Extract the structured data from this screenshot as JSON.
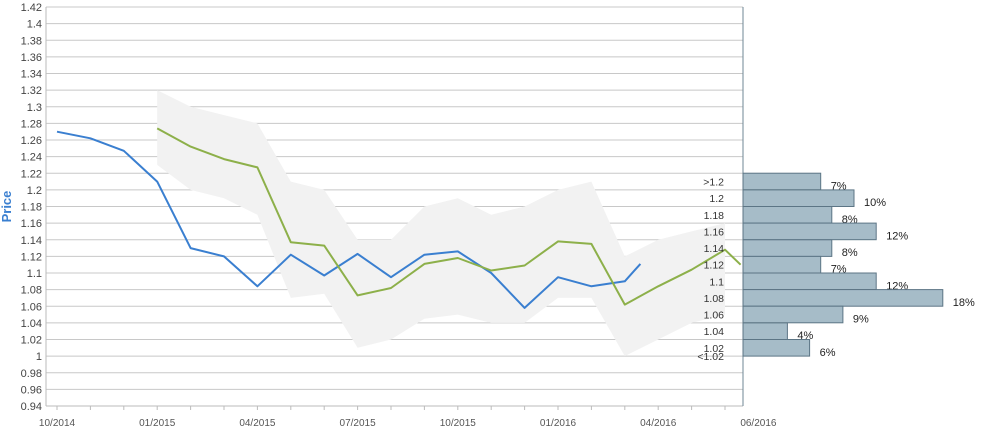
{
  "chart_data": {
    "type": "line",
    "ylabel": "Price",
    "ylim": [
      0.94,
      1.42
    ],
    "yticks": [
      0.94,
      0.96,
      0.98,
      1,
      1.02,
      1.04,
      1.06,
      1.08,
      1.1,
      1.12,
      1.14,
      1.16,
      1.18,
      1.2,
      1.22,
      1.24,
      1.26,
      1.28,
      1.3,
      1.32,
      1.34,
      1.36,
      1.38,
      1.4,
      1.42
    ],
    "xticks": [
      "10/2014",
      "01/2015",
      "04/2015",
      "07/2015",
      "10/2015",
      "01/2016",
      "04/2016",
      "06/2016"
    ],
    "grid": true,
    "colors": {
      "historical": "#3a7fd0",
      "forecast": "#8db04a",
      "band": "#f2f2f2",
      "histogram": "#a6bcc8",
      "histogram_border": "#5c7585",
      "ylabel": "#3a7fd0"
    },
    "series": [
      {
        "values": [
          [
            "2014-10",
            1.27
          ],
          [
            "2014-11",
            1.262
          ],
          [
            "2014-12",
            1.247
          ],
          [
            "2015-01",
            1.21
          ],
          [
            "2015-02",
            1.13
          ],
          [
            "2015-03",
            1.12
          ],
          [
            "2015-04",
            1.084
          ],
          [
            "2015-05",
            1.122
          ],
          [
            "2015-06",
            1.097
          ],
          [
            "2015-07",
            1.123
          ],
          [
            "2015-08",
            1.095
          ],
          [
            "2015-09",
            1.122
          ],
          [
            "2015-10",
            1.126
          ],
          [
            "2015-11",
            1.1
          ],
          [
            "2015-12",
            1.058
          ],
          [
            "2016-01",
            1.095
          ],
          [
            "2016-02",
            1.084
          ],
          [
            "2016-03",
            1.09
          ],
          [
            "2016-03-15",
            1.111
          ]
        ]
      },
      {
        "values": [
          [
            "2015-01",
            1.274
          ],
          [
            "2015-02",
            1.252
          ],
          [
            "2015-03",
            1.237
          ],
          [
            "2015-04",
            1.227
          ],
          [
            "2015-05",
            1.137
          ],
          [
            "2015-06",
            1.133
          ],
          [
            "2015-07",
            1.073
          ],
          [
            "2015-08",
            1.082
          ],
          [
            "2015-09",
            1.111
          ],
          [
            "2015-10",
            1.118
          ],
          [
            "2015-11",
            1.103
          ],
          [
            "2015-12",
            1.109
          ],
          [
            "2016-01",
            1.138
          ],
          [
            "2016-02",
            1.135
          ],
          [
            "2016-03",
            1.062
          ],
          [
            "2016-04",
            1.084
          ],
          [
            "2016-05",
            1.104
          ],
          [
            "2016-06",
            1.128
          ],
          [
            "2016-06-15",
            1.11
          ]
        ]
      }
    ],
    "band": {
      "upper": [
        [
          "2015-01",
          1.32
        ],
        [
          "2015-02",
          1.3
        ],
        [
          "2015-03",
          1.29
        ],
        [
          "2015-04",
          1.28
        ],
        [
          "2015-05",
          1.21
        ],
        [
          "2015-06",
          1.2
        ],
        [
          "2015-07",
          1.14
        ],
        [
          "2015-08",
          1.14
        ],
        [
          "2015-09",
          1.18
        ],
        [
          "2015-10",
          1.19
        ],
        [
          "2015-11",
          1.17
        ],
        [
          "2015-12",
          1.18
        ],
        [
          "2016-01",
          1.2
        ],
        [
          "2016-02",
          1.21
        ],
        [
          "2016-03",
          1.12
        ],
        [
          "2016-04",
          1.14
        ],
        [
          "2016-05",
          1.15
        ],
        [
          "2016-06",
          1.16
        ]
      ],
      "lower": [
        [
          "2015-01",
          1.23
        ],
        [
          "2015-02",
          1.2
        ],
        [
          "2015-03",
          1.19
        ],
        [
          "2015-04",
          1.17
        ],
        [
          "2015-05",
          1.07
        ],
        [
          "2015-06",
          1.075
        ],
        [
          "2015-07",
          1.01
        ],
        [
          "2015-08",
          1.02
        ],
        [
          "2015-09",
          1.045
        ],
        [
          "2015-10",
          1.05
        ],
        [
          "2015-11",
          1.04
        ],
        [
          "2015-12",
          1.04
        ],
        [
          "2016-01",
          1.07
        ],
        [
          "2016-02",
          1.07
        ],
        [
          "2016-03",
          1.0
        ],
        [
          "2016-04",
          1.02
        ],
        [
          "2016-05",
          1.04
        ],
        [
          "2016-06",
          1.05
        ]
      ]
    },
    "histogram": {
      "bins": [
        {
          "label": ">1.2",
          "value": 1.21,
          "pct": 7,
          "pct_label": "7%"
        },
        {
          "label": "1.2",
          "value": 1.19,
          "pct": 10,
          "pct_label": "10%"
        },
        {
          "label": "1.18",
          "value": 1.17,
          "pct": 8,
          "pct_label": "8%"
        },
        {
          "label": "1.16",
          "value": 1.15,
          "pct": 12,
          "pct_label": "12%"
        },
        {
          "label": "1.14",
          "value": 1.13,
          "pct": 8,
          "pct_label": "8%"
        },
        {
          "label": "1.12",
          "value": 1.11,
          "pct": 7,
          "pct_label": "7%"
        },
        {
          "label": "1.1",
          "value": 1.09,
          "pct": 12,
          "pct_label": "12%"
        },
        {
          "label": "1.08",
          "value": 1.07,
          "pct": 18,
          "pct_label": "18%"
        },
        {
          "label": "1.06",
          "value": 1.05,
          "pct": 9,
          "pct_label": "9%"
        },
        {
          "label": "1.04",
          "value": 1.03,
          "pct": 4,
          "pct_label": "4%"
        },
        {
          "label": "1.02",
          "value": 1.01,
          "pct": 6,
          "pct_label": "6%"
        },
        {
          "label": "<1.02",
          "value": 1.0,
          "pct": 0,
          "pct_label": ""
        }
      ]
    }
  }
}
